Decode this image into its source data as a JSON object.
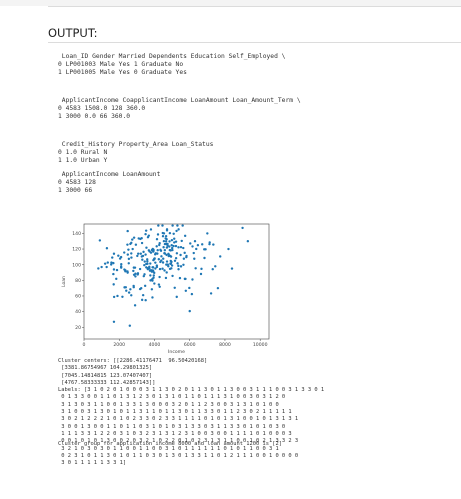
{
  "page": {
    "heading": "OUTPUT:"
  },
  "tables": {
    "block1": " Loan_ID Gender Married Dependents Education Self_Employed \\\n0 LP001003 Male Yes 1 Graduate No\n1 LP001005 Male Yes 0 Graduate Yes",
    "block2": " ApplicantIncome CoapplicantIncome LoanAmount Loan_Amount_Term \\\n0 4583 1508.0 128 360.0\n1 3000 0.0 66 360.0",
    "block3": " Credit_History Property_Area Loan_Status\n0 1.0 Rural N\n1 1.0 Urban Y",
    "block4": " ApplicantIncome LoanAmount\n0 4583 128\n1 3000 66"
  },
  "chart_data": {
    "type": "scatter",
    "xlabel": "Income",
    "ylabel": "Loan",
    "xlim": [
      0,
      10500
    ],
    "ylim": [
      5,
      152
    ],
    "xticks": [
      0,
      2000,
      4000,
      6000,
      8000,
      10000
    ],
    "yticks": [
      20,
      40,
      60,
      80,
      100,
      120,
      140
    ],
    "point_color": "#1f77b4",
    "grid": false
  },
  "clusters": {
    "text": "Cluster centers: [[2286.41176471  96.50420168]\n [3381.86754967 104.29801325]\n [7045.14814815 123.07407407]\n [4767.58333333 112.42857143]]\nLabels: [3 1 0 2 0 1 0 0 0 3 1 1 3 0 2 0 1 1 3 0 1 1 3 0 0 3 1 1 1 0 0 3 1 3 3 0 1\n 0 1 3 3 0 0 1 1 0 1 3 1 2 3 0 1 3 1 0 1 1 0 1 1 1 3 1 0 0 3 0 3 1 2 0\n 3 1 3 0 3 1 1 0 0 1 3 3 1 3 0 0 0 3 2 0 1 1 2 3 0 0 3 1 3 1 0 1 0 0\n 3 1 0 0 3 1 3 0 1 0 1 1 3 1 1 0 1 1 3 0 1 1 3 3 0 1 1 2 3 0 2 1 1 1 1 1\n 3 0 2 1 2 2 2 1 0 1 0 2 3 3 0 2 3 3 1 1 1 1 0 1 0 1 3 1 0 0 1 0 1 3 1 3 1\n 3 0 0 1 3 0 0 1 1 0 1 1 0 3 1 0 1 0 3 1 3 3 0 3 1 1 3 3 0 1 0 1 0 3 0\n 1 1 1 3 3 1 2 2 0 3 1 0 3 2 3 1 3 1 2 3 1 0 0 3 0 0 1 1 1 1 0 1 0 0 0 3\n 0 0 1 0 1 0 1 3 0 0 2 0 3 2 1 0 2 2 0 1 0 2 3 1 3 1 1 0 0 1 0 2 1 3 3 2 3\n 3 2 1 0 3 0 3 0 1 1 0 0 1 1 0 0 3 1 0 1 1 1 1 1 1 0 1 0 1 1 0 0 3 1\n 0 2 3 1 0 1 1 3 0 1 0 1 1 0 3 0 1 3 0 1 3 3 1 1 0 1 2 1 1 1 0 0 1 0 0 0 0\n 3 0 1 1 1 1 1 3 3 1]",
    "footer": "Cluster group for application income 8000 and loan amount 1200 is [2]"
  }
}
